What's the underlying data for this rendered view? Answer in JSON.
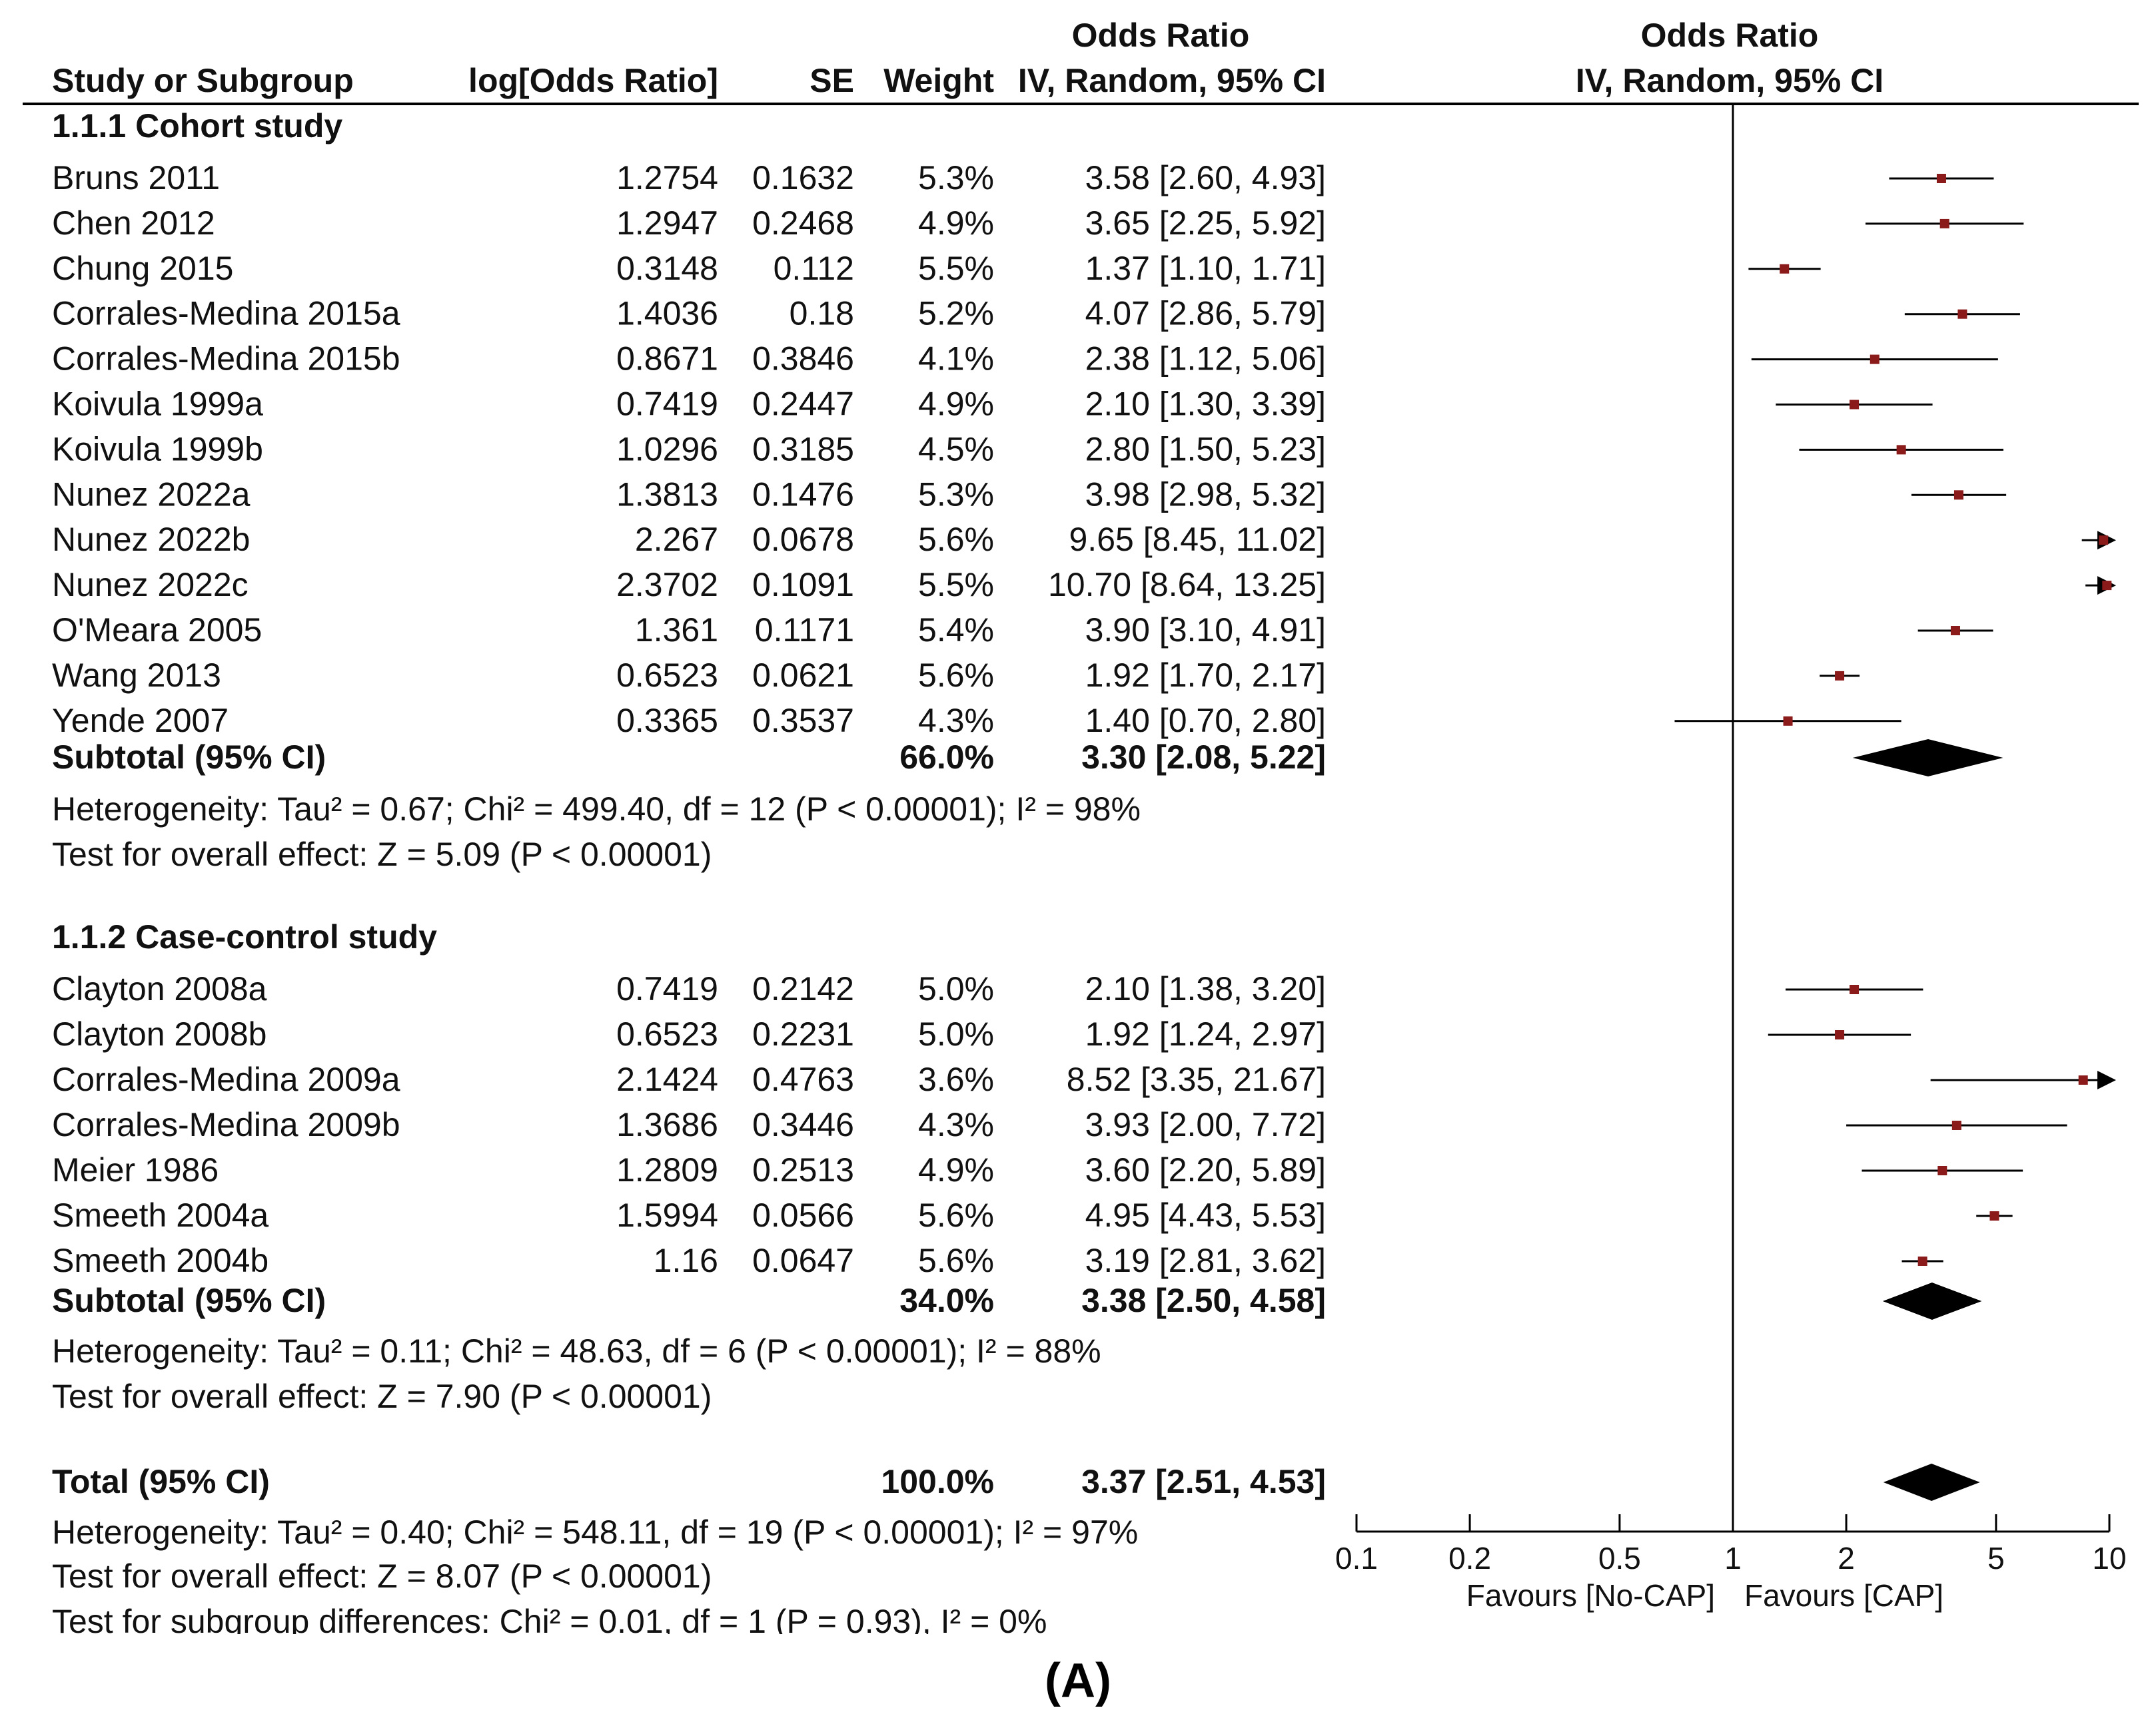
{
  "chart_data": {
    "type": "forest",
    "header": {
      "group_label_top": "Odds Ratio",
      "plot_label_top": "Odds Ratio",
      "study_col": "Study or Subgroup",
      "logor_col": "log[Odds Ratio]",
      "se_col": "SE",
      "weight_col": "Weight",
      "ci_col": "IV, Random, 95% CI",
      "plot_col": "IV, Random, 95% CI"
    },
    "subgroups": [
      {
        "title": "1.1.1 Cohort study",
        "studies": [
          {
            "name": "Bruns 2011",
            "logor": "1.2754",
            "se": "0.1632",
            "weight": "5.3%",
            "ci_text": "3.58 [2.60, 4.93]",
            "or": 3.58,
            "lo": 2.6,
            "hi": 4.93
          },
          {
            "name": "Chen 2012",
            "logor": "1.2947",
            "se": "0.2468",
            "weight": "4.9%",
            "ci_text": "3.65 [2.25, 5.92]",
            "or": 3.65,
            "lo": 2.25,
            "hi": 5.92
          },
          {
            "name": "Chung 2015",
            "logor": "0.3148",
            "se": "0.112",
            "weight": "5.5%",
            "ci_text": "1.37 [1.10, 1.71]",
            "or": 1.37,
            "lo": 1.1,
            "hi": 1.71
          },
          {
            "name": "Corrales-Medina 2015a",
            "logor": "1.4036",
            "se": "0.18",
            "weight": "5.2%",
            "ci_text": "4.07 [2.86, 5.79]",
            "or": 4.07,
            "lo": 2.86,
            "hi": 5.79
          },
          {
            "name": "Corrales-Medina 2015b",
            "logor": "0.8671",
            "se": "0.3846",
            "weight": "4.1%",
            "ci_text": "2.38 [1.12, 5.06]",
            "or": 2.38,
            "lo": 1.12,
            "hi": 5.06
          },
          {
            "name": "Koivula 1999a",
            "logor": "0.7419",
            "se": "0.2447",
            "weight": "4.9%",
            "ci_text": "2.10 [1.30, 3.39]",
            "or": 2.1,
            "lo": 1.3,
            "hi": 3.39
          },
          {
            "name": "Koivula 1999b",
            "logor": "1.0296",
            "se": "0.3185",
            "weight": "4.5%",
            "ci_text": "2.80 [1.50, 5.23]",
            "or": 2.8,
            "lo": 1.5,
            "hi": 5.23
          },
          {
            "name": "Nunez 2022a",
            "logor": "1.3813",
            "se": "0.1476",
            "weight": "5.3%",
            "ci_text": "3.98 [2.98, 5.32]",
            "or": 3.98,
            "lo": 2.98,
            "hi": 5.32
          },
          {
            "name": "Nunez 2022b",
            "logor": "2.267",
            "se": "0.0678",
            "weight": "5.6%",
            "ci_text": "9.65 [8.45, 11.02]",
            "or": 9.65,
            "lo": 8.45,
            "hi": 11.02
          },
          {
            "name": "Nunez 2022c",
            "logor": "2.3702",
            "se": "0.1091",
            "weight": "5.5%",
            "ci_text": "10.70 [8.64, 13.25]",
            "or": 10.7,
            "lo": 8.64,
            "hi": 13.25
          },
          {
            "name": "O'Meara 2005",
            "logor": "1.361",
            "se": "0.1171",
            "weight": "5.4%",
            "ci_text": "3.90 [3.10, 4.91]",
            "or": 3.9,
            "lo": 3.1,
            "hi": 4.91
          },
          {
            "name": "Wang 2013",
            "logor": "0.6523",
            "se": "0.0621",
            "weight": "5.6%",
            "ci_text": "1.92 [1.70, 2.17]",
            "or": 1.92,
            "lo": 1.7,
            "hi": 2.17
          },
          {
            "name": "Yende 2007",
            "logor": "0.3365",
            "se": "0.3537",
            "weight": "4.3%",
            "ci_text": "1.40 [0.70, 2.80]",
            "or": 1.4,
            "lo": 0.7,
            "hi": 2.8
          }
        ],
        "subtotal": {
          "label": "Subtotal (95% CI)",
          "weight": "66.0%",
          "ci_text": "3.30 [2.08, 5.22]",
          "or": 3.3,
          "lo": 2.08,
          "hi": 5.22
        },
        "heterogeneity": "Heterogeneity: Tau² = 0.67; Chi² = 499.40, df = 12 (P < 0.00001); I² = 98%",
        "overall_effect": "Test for overall effect: Z = 5.09 (P < 0.00001)"
      },
      {
        "title": "1.1.2 Case-control study",
        "studies": [
          {
            "name": "Clayton 2008a",
            "logor": "0.7419",
            "se": "0.2142",
            "weight": "5.0%",
            "ci_text": "2.10 [1.38, 3.20]",
            "or": 2.1,
            "lo": 1.38,
            "hi": 3.2
          },
          {
            "name": "Clayton 2008b",
            "logor": "0.6523",
            "se": "0.2231",
            "weight": "5.0%",
            "ci_text": "1.92 [1.24, 2.97]",
            "or": 1.92,
            "lo": 1.24,
            "hi": 2.97
          },
          {
            "name": "Corrales-Medina 2009a",
            "logor": "2.1424",
            "se": "0.4763",
            "weight": "3.6%",
            "ci_text": "8.52 [3.35, 21.67]",
            "or": 8.52,
            "lo": 3.35,
            "hi": 21.67
          },
          {
            "name": "Corrales-Medina 2009b",
            "logor": "1.3686",
            "se": "0.3446",
            "weight": "4.3%",
            "ci_text": "3.93 [2.00, 7.72]",
            "or": 3.93,
            "lo": 2.0,
            "hi": 7.72
          },
          {
            "name": "Meier 1986",
            "logor": "1.2809",
            "se": "0.2513",
            "weight": "4.9%",
            "ci_text": "3.60 [2.20, 5.89]",
            "or": 3.6,
            "lo": 2.2,
            "hi": 5.89
          },
          {
            "name": "Smeeth 2004a",
            "logor": "1.5994",
            "se": "0.0566",
            "weight": "5.6%",
            "ci_text": "4.95 [4.43, 5.53]",
            "or": 4.95,
            "lo": 4.43,
            "hi": 5.53
          },
          {
            "name": "Smeeth 2004b",
            "logor": "1.16",
            "se": "0.0647",
            "weight": "5.6%",
            "ci_text": "3.19 [2.81, 3.62]",
            "or": 3.19,
            "lo": 2.81,
            "hi": 3.62
          }
        ],
        "subtotal": {
          "label": "Subtotal (95% CI)",
          "weight": "34.0%",
          "ci_text": "3.38 [2.50, 4.58]",
          "or": 3.38,
          "lo": 2.5,
          "hi": 4.58
        },
        "heterogeneity": "Heterogeneity: Tau² = 0.11; Chi² = 48.63, df = 6 (P < 0.00001); I² = 88%",
        "overall_effect": "Test for overall effect: Z = 7.90 (P < 0.00001)"
      }
    ],
    "total": {
      "label": "Total (95% CI)",
      "weight": "100.0%",
      "ci_text": "3.37 [2.51, 4.53]",
      "or": 3.37,
      "lo": 2.51,
      "hi": 4.53
    },
    "total_heterogeneity": "Heterogeneity: Tau² = 0.40; Chi² = 548.11, df = 19 (P < 0.00001); I² = 97%",
    "total_overall_effect": "Test for overall effect: Z = 8.07 (P < 0.00001)",
    "subgroup_differences": "Test for subgroup differences: Chi² = 0.01, df = 1 (P = 0.93), I² = 0%",
    "x_axis": {
      "scale": "log",
      "range": [
        0.1,
        10
      ],
      "ticks": [
        0.1,
        0.2,
        0.5,
        1,
        2,
        5,
        10
      ],
      "tick_labels": [
        "0.1",
        "0.2",
        "0.5",
        "1",
        "2",
        "5",
        "10"
      ],
      "favours_left": "Favours [No-CAP]",
      "favours_right": "Favours [CAP]"
    },
    "caption": "(A)",
    "colors": {
      "point": "#8b1a1a",
      "line": "#000000",
      "diamond": "#000000"
    }
  }
}
